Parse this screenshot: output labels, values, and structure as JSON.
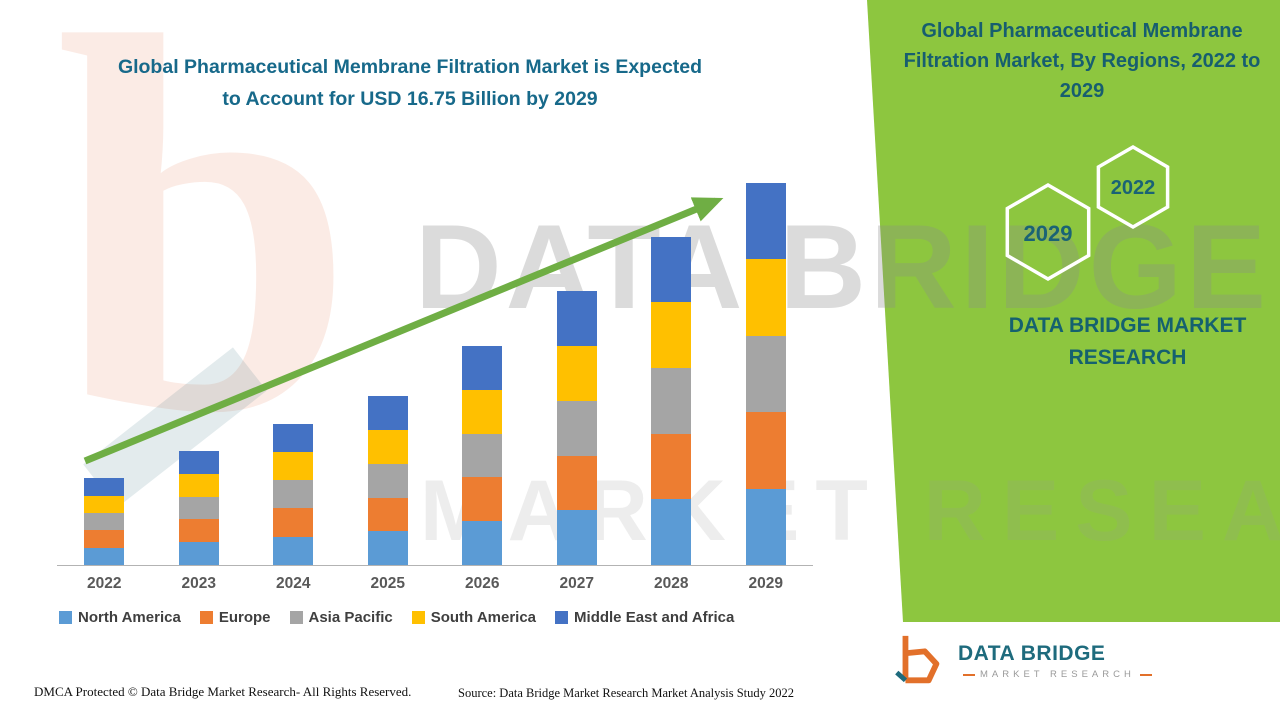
{
  "header": {
    "title_line1": "Global Pharmaceutical Membrane Filtration Market is Expected",
    "title_line2": "to Account for USD 16.75 Billion by 2029"
  },
  "chart_data": {
    "type": "bar",
    "stacked": true,
    "title": "Global Pharmaceutical Membrane Filtration Market is Expected to Account for USD 16.75 Billion by 2029",
    "categories": [
      "2022",
      "2023",
      "2024",
      "2025",
      "2026",
      "2027",
      "2028",
      "2029"
    ],
    "series": [
      {
        "name": "North America",
        "color": "#5B9BD5",
        "values": [
          0.76,
          1.0,
          1.24,
          1.48,
          1.92,
          2.4,
          2.88,
          3.35
        ]
      },
      {
        "name": "Europe",
        "color": "#ED7D31",
        "values": [
          0.76,
          1.0,
          1.24,
          1.48,
          1.92,
          2.4,
          2.88,
          3.35
        ]
      },
      {
        "name": "Asia Pacific",
        "color": "#A5A5A5",
        "values": [
          0.76,
          1.0,
          1.24,
          1.48,
          1.92,
          2.4,
          2.88,
          3.35
        ]
      },
      {
        "name": "South America",
        "color": "#FFC000",
        "values": [
          0.76,
          1.0,
          1.24,
          1.48,
          1.92,
          2.4,
          2.88,
          3.35
        ]
      },
      {
        "name": "Middle East and Africa",
        "color": "#4472C4",
        "values": [
          0.76,
          1.0,
          1.24,
          1.48,
          1.92,
          2.4,
          2.88,
          3.35
        ]
      }
    ],
    "totals": [
      3.8,
      5.0,
      6.2,
      7.4,
      9.6,
      12.0,
      14.4,
      16.75
    ],
    "xlabel": "",
    "ylabel": "",
    "ylim": [
      0,
      17
    ],
    "grid": false,
    "legend_position": "bottom",
    "annotations": [
      "upward green trend arrow from 2022 to 2029"
    ],
    "trend_arrow_color": "#6FAE44"
  },
  "side_panel": {
    "title": "Global Pharmaceutical Membrane Filtration Market, By Regions, 2022 to 2029",
    "year_top": "2022",
    "year_bottom": "2029",
    "brand": "DATA BRIDGE MARKET RESEARCH",
    "background_color": "#8DC63F"
  },
  "watermark": {
    "logo_letter": "b",
    "line1": "DATA BRIDGE",
    "line2": "MARKET RESEARCH"
  },
  "logo": {
    "title": "DATA BRIDGE",
    "subtitle": "MARKET RESEARCH"
  },
  "footer": {
    "dmca": "DMCA Protected © Data Bridge Market Research- All Rights Reserved.",
    "source": "Source: Data Bridge Market Research Market Analysis Study 2022"
  },
  "colors": {
    "title_teal": "#17698A",
    "panel_text_teal": "#175E6F",
    "axis_label_gray": "#595959",
    "legend_text": "#3F3F3F",
    "arrow_green": "#6FAE44",
    "panel_green": "#8DC63F",
    "logo_orange": "#E2702A",
    "logo_teal": "#1E6B7D"
  }
}
